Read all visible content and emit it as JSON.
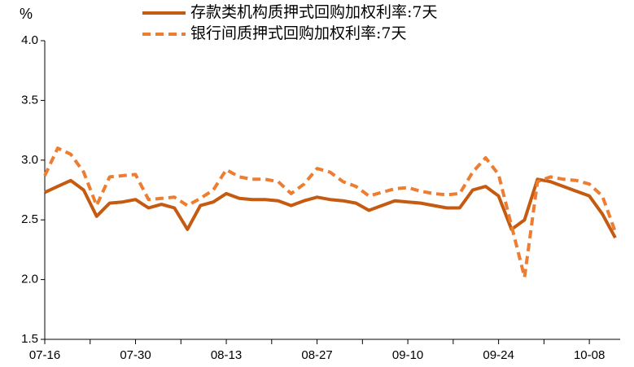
{
  "chart_data": {
    "type": "line",
    "y_label": "%",
    "categories": [
      "07-16",
      null,
      null,
      null,
      null,
      null,
      null,
      "07-30",
      null,
      null,
      null,
      null,
      null,
      null,
      "08-13",
      null,
      null,
      null,
      null,
      null,
      null,
      "08-27",
      null,
      null,
      null,
      null,
      null,
      null,
      "09-10",
      null,
      null,
      null,
      null,
      null,
      null,
      "09-24",
      null,
      null,
      null,
      null,
      null,
      null,
      "10-08",
      null,
      null
    ],
    "series": [
      {
        "name": "存款类机构质押式回购加权利率:7天",
        "color": "#c55a11",
        "dash": false,
        "values": [
          2.73,
          2.78,
          2.83,
          2.75,
          2.53,
          2.64,
          2.65,
          2.67,
          2.6,
          2.63,
          2.6,
          2.42,
          2.62,
          2.65,
          2.72,
          2.68,
          2.67,
          2.67,
          2.66,
          2.62,
          2.66,
          2.69,
          2.67,
          2.66,
          2.64,
          2.58,
          2.62,
          2.66,
          2.65,
          2.64,
          2.62,
          2.6,
          2.6,
          2.75,
          2.78,
          2.7,
          2.42,
          2.5,
          2.84,
          2.82,
          2.78,
          2.74,
          2.7,
          2.55,
          2.35
        ]
      },
      {
        "name": "银行间质押式回购加权利率:7天",
        "color": "#ed7d31",
        "dash": true,
        "values": [
          2.87,
          3.1,
          3.05,
          2.9,
          2.62,
          2.86,
          2.87,
          2.88,
          2.67,
          2.68,
          2.69,
          2.62,
          2.68,
          2.75,
          2.92,
          2.86,
          2.84,
          2.84,
          2.82,
          2.72,
          2.8,
          2.93,
          2.9,
          2.82,
          2.78,
          2.7,
          2.73,
          2.76,
          2.77,
          2.74,
          2.72,
          2.71,
          2.72,
          2.9,
          3.02,
          2.88,
          2.45,
          2.02,
          2.82,
          2.86,
          2.84,
          2.83,
          2.8,
          2.7,
          2.4
        ]
      }
    ],
    "ylim": [
      1.5,
      4.0
    ],
    "yticks": [
      {
        "value": 1.5,
        "label": "1.5"
      },
      {
        "value": 2.0,
        "label": "2.0"
      },
      {
        "value": 2.5,
        "label": "2.5"
      },
      {
        "value": 3.0,
        "label": "3.0"
      },
      {
        "value": 3.5,
        "label": "3.5"
      },
      {
        "value": 4.0,
        "label": "4.0"
      }
    ],
    "grid": false
  }
}
